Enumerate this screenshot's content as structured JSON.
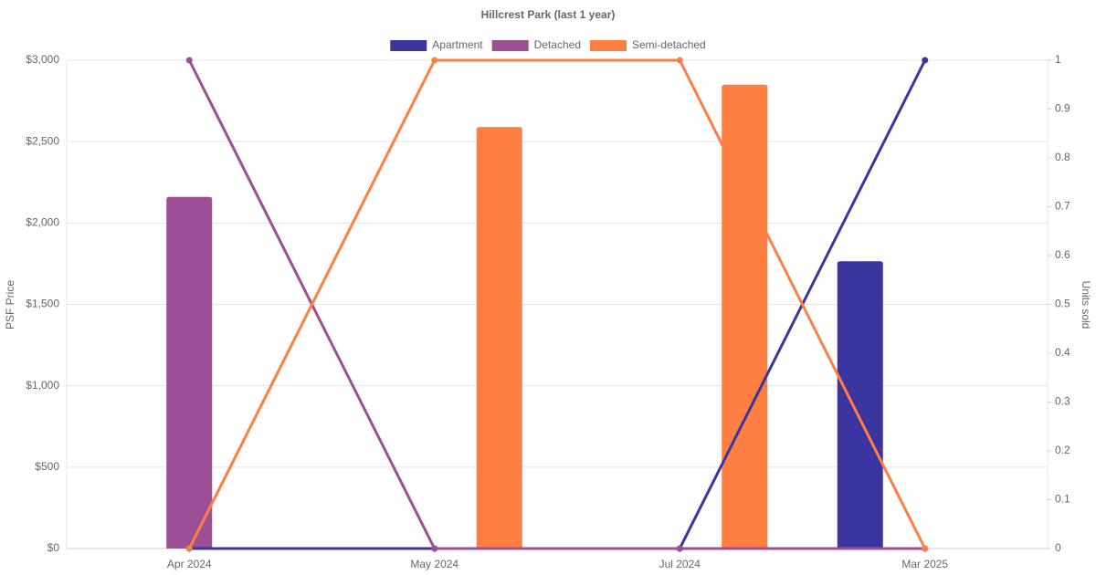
{
  "chart_data": {
    "type": "bar-line",
    "title": "Hillcrest Park (last 1 year)",
    "y_label": "PSF Price",
    "y2_label": "Units sold",
    "categories": [
      "Apr 2024",
      "May 2024",
      "Jul 2024",
      "Mar 2025"
    ],
    "series": [
      {
        "name": "Apartment",
        "color": "#3b35a0",
        "values": [
          null,
          null,
          null,
          1765
        ],
        "units": [
          0,
          0,
          0,
          1
        ]
      },
      {
        "name": "Detached",
        "color": "#9c4f94",
        "values": [
          2160,
          null,
          null,
          null
        ],
        "units": [
          1,
          0,
          0,
          0
        ]
      },
      {
        "name": "Semi-detached",
        "color": "#ff7f43",
        "values": [
          null,
          2590,
          2850,
          null
        ],
        "units": [
          0,
          1,
          1,
          0
        ]
      }
    ],
    "ylim": [
      0,
      3000
    ],
    "yticks": [
      {
        "value": 0,
        "label": "$0"
      },
      {
        "value": 500,
        "label": "$500"
      },
      {
        "value": 1000,
        "label": "$1,000"
      },
      {
        "value": 1500,
        "label": "$1,500"
      },
      {
        "value": 2000,
        "label": "$2,000"
      },
      {
        "value": 2500,
        "label": "$2,500"
      },
      {
        "value": 3000,
        "label": "$3,000"
      }
    ],
    "y2lim": [
      0,
      1
    ],
    "y2ticks": [
      0,
      0.1,
      0.2,
      0.3,
      0.4,
      0.5,
      0.6,
      0.7,
      0.8,
      0.9,
      1
    ],
    "grid": true
  }
}
